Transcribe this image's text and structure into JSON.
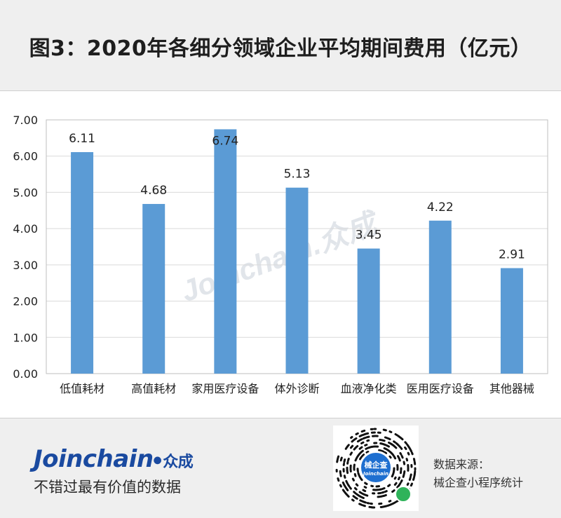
{
  "title": "图3：2020年各细分领域企业平均期间费用（亿元）",
  "watermark": "Joinchain.众成",
  "colors": {
    "bar": "#5b9bd5",
    "grid": "#d9d9d9",
    "header_bg": "#efefef",
    "brand": "#1a4aa0"
  },
  "chart_data": {
    "type": "bar",
    "title": "图3：2020年各细分领域企业平均期间费用（亿元）",
    "categories": [
      "低值耗材",
      "高值耗材",
      "家用医疗设备",
      "体外诊断",
      "血液净化类",
      "医用医疗设备",
      "其他器械"
    ],
    "values": [
      6.11,
      4.68,
      6.74,
      5.13,
      3.45,
      4.22,
      2.91
    ],
    "data_labels": [
      "6.11",
      "4.68",
      "6.74",
      "5.13",
      "3.45",
      "4.22",
      "2.91"
    ],
    "ylim": [
      0,
      7
    ],
    "yticks": [
      "0.00",
      "1.00",
      "2.00",
      "3.00",
      "4.00",
      "5.00",
      "6.00",
      "7.00"
    ],
    "xlabel": "",
    "ylabel": "",
    "grid": true,
    "legend": "none"
  },
  "footer": {
    "brand_en": "Joinchain",
    "brand_cn": "众成",
    "slogan": "不错过最有价值的数据",
    "qr_badge_cn": "械企查",
    "qr_badge_en": "Joinchain",
    "source_label": "数据来源：",
    "source_value": "械企查小程序统计"
  }
}
